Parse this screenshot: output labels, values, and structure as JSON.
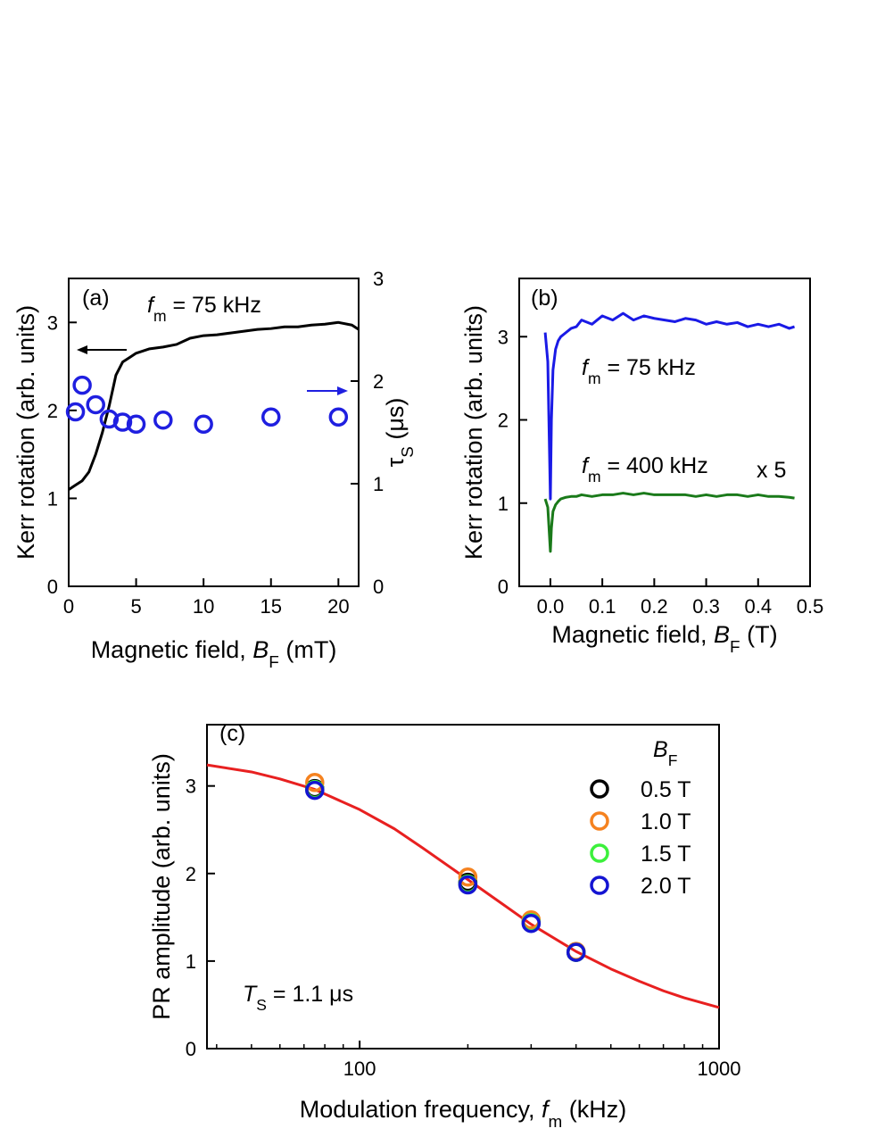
{
  "chart_data": [
    {
      "type": "line",
      "annotations": [
        {
          "parts": [
            {
              "text": "(a)"
            }
          ]
        },
        {
          "parts": [
            {
              "text": "f",
              "style": "italic"
            },
            {
              "text": "m",
              "style": "sub"
            },
            {
              "text": " = 75 kHz"
            }
          ]
        }
      ],
      "xlabel": [
        {
          "text": "Magnetic field, "
        },
        {
          "text": "B",
          "style": "italic"
        },
        {
          "text": "F",
          "style": "sub"
        },
        {
          "text": " (mT)"
        }
      ],
      "ylabel": [
        {
          "text": "Kerr rotation (arb. units)"
        }
      ],
      "y2label": [
        {
          "text": "τ"
        },
        {
          "text": "S",
          "style": "sub"
        },
        {
          "text": " (μs)"
        }
      ],
      "xlim": [
        0,
        21.5
      ],
      "xticks": [
        0,
        5,
        10,
        15,
        20
      ],
      "ylim": [
        0,
        3.5
      ],
      "yticks": [
        0,
        1,
        2,
        3
      ],
      "y2lim": [
        0,
        3
      ],
      "y2ticks": [
        0,
        1,
        2,
        3
      ],
      "series": [
        {
          "type": "line",
          "color": "#000000",
          "x": [
            0,
            0.5,
            1,
            1.5,
            2,
            2.5,
            3,
            3.5,
            4,
            4.5,
            5,
            6,
            7,
            8,
            9,
            10,
            11,
            12,
            13,
            14,
            15,
            16,
            17,
            18,
            19,
            20,
            21,
            21.5
          ],
          "values": [
            1.1,
            1.15,
            1.2,
            1.3,
            1.5,
            1.75,
            2.05,
            2.4,
            2.55,
            2.6,
            2.65,
            2.7,
            2.72,
            2.75,
            2.82,
            2.85,
            2.86,
            2.88,
            2.9,
            2.92,
            2.93,
            2.95,
            2.95,
            2.97,
            2.98,
            3.0,
            2.97,
            2.92
          ]
        },
        {
          "type": "scatter",
          "color": "#1f1fe0",
          "axis": "y2",
          "x": [
            0.5,
            1,
            2,
            3,
            4,
            5,
            7,
            10,
            15,
            20
          ],
          "values": [
            1.7,
            1.96,
            1.77,
            1.63,
            1.6,
            1.58,
            1.62,
            1.58,
            1.65,
            1.65
          ]
        }
      ]
    },
    {
      "type": "line",
      "annotations": [
        {
          "parts": [
            {
              "text": "(b)"
            }
          ]
        },
        {
          "parts": [
            {
              "text": "f",
              "style": "italic"
            },
            {
              "text": "m",
              "style": "sub"
            },
            {
              "text": " = 75 kHz"
            }
          ]
        },
        {
          "parts": [
            {
              "text": "f",
              "style": "italic"
            },
            {
              "text": "m",
              "style": "sub"
            },
            {
              "text": " = 400 kHz"
            }
          ]
        },
        {
          "parts": [
            {
              "text": "x 5"
            }
          ]
        }
      ],
      "xlabel": [
        {
          "text": "Magnetic field, "
        },
        {
          "text": "B",
          "style": "italic"
        },
        {
          "text": "F",
          "style": "sub"
        },
        {
          "text": " (T)"
        }
      ],
      "ylabel": [
        {
          "text": "Kerr rotation (arb. units)"
        }
      ],
      "xlim": [
        -0.06,
        0.5
      ],
      "xticks": [
        {
          "value": 0,
          "label": "0.0"
        },
        0.1,
        0.2,
        0.3,
        0.4,
        0.5
      ],
      "ylim": [
        0,
        3.7
      ],
      "yticks": [
        0,
        1,
        2,
        3
      ],
      "x": [
        -0.01,
        -0.005,
        0,
        0.002,
        0.005,
        0.01,
        0.015,
        0.02,
        0.03,
        0.04,
        0.05,
        0.06,
        0.08,
        0.1,
        0.12,
        0.14,
        0.16,
        0.18,
        0.2,
        0.22,
        0.24,
        0.26,
        0.28,
        0.3,
        0.32,
        0.34,
        0.36,
        0.38,
        0.4,
        0.42,
        0.44,
        0.46,
        0.47
      ],
      "series": [
        {
          "type": "line",
          "color": "#1a1ae6",
          "values": [
            3.05,
            2.7,
            1.05,
            2.0,
            2.6,
            2.85,
            2.95,
            3.0,
            3.05,
            3.1,
            3.12,
            3.2,
            3.15,
            3.25,
            3.2,
            3.28,
            3.2,
            3.25,
            3.22,
            3.2,
            3.18,
            3.22,
            3.2,
            3.15,
            3.18,
            3.15,
            3.17,
            3.12,
            3.15,
            3.12,
            3.15,
            3.1,
            3.12
          ]
        },
        {
          "type": "line",
          "color": "#1a7a1a",
          "values": [
            1.05,
            0.95,
            0.42,
            0.7,
            0.9,
            0.98,
            1.02,
            1.05,
            1.07,
            1.08,
            1.08,
            1.1,
            1.08,
            1.1,
            1.1,
            1.12,
            1.1,
            1.12,
            1.1,
            1.1,
            1.1,
            1.1,
            1.08,
            1.1,
            1.08,
            1.1,
            1.1,
            1.08,
            1.1,
            1.08,
            1.08,
            1.07,
            1.06
          ]
        }
      ]
    },
    {
      "type": "scatter",
      "xscale": "log",
      "annotations": [
        {
          "parts": [
            {
              "text": "(c)"
            }
          ]
        },
        {
          "parts": [
            {
              "text": "T",
              "style": "italic"
            },
            {
              "text": "S",
              "style": "sub"
            },
            {
              "text": " = 1.1 μs"
            }
          ]
        }
      ],
      "xlabel": [
        {
          "text": "Modulation frequency, "
        },
        {
          "text": "f",
          "style": "italic"
        },
        {
          "text": "m",
          "style": "sub"
        },
        {
          "text": " (kHz)"
        }
      ],
      "ylabel": [
        {
          "text": "PR amplitude (arb. units)"
        }
      ],
      "legend_title": [
        {
          "text": "B",
          "style": "italic"
        },
        {
          "text": "F",
          "style": "sub"
        }
      ],
      "legend": "upper right",
      "xlim": [
        37.6,
        1000
      ],
      "xticks": [
        100,
        1000
      ],
      "xminorticks": [
        40,
        50,
        60,
        70,
        80,
        90,
        200,
        300,
        400,
        500,
        600,
        700,
        800,
        900
      ],
      "ylim": [
        0,
        3.7
      ],
      "yticks": [
        0,
        1,
        2,
        3
      ],
      "series": [
        {
          "type": "line",
          "color": "#e82020",
          "x": [
            37.6,
            50,
            60,
            75,
            100,
            125,
            150,
            200,
            250,
            300,
            400,
            500,
            600,
            700,
            800,
            1000
          ],
          "values": [
            3.24,
            3.16,
            3.08,
            2.96,
            2.73,
            2.51,
            2.29,
            1.93,
            1.65,
            1.42,
            1.11,
            0.91,
            0.77,
            0.66,
            0.58,
            0.47
          ]
        },
        {
          "type": "scatter",
          "name": "0.5 T",
          "color": "#000000",
          "x": [
            75,
            200,
            300,
            400
          ],
          "values": [
            2.97,
            1.9,
            1.45,
            1.1
          ]
        },
        {
          "type": "scatter",
          "name": "1.0 T",
          "color": "#f5821f",
          "x": [
            75,
            200,
            300,
            400
          ],
          "values": [
            3.04,
            1.96,
            1.47,
            1.11
          ]
        },
        {
          "type": "scatter",
          "name": "1.5 T",
          "color": "#3cf03c",
          "x": [
            75,
            200,
            300,
            400
          ],
          "values": [
            2.96,
            1.88,
            1.44,
            1.1
          ]
        },
        {
          "type": "scatter",
          "name": "2.0 T",
          "color": "#1414d2",
          "x": [
            75,
            200,
            300,
            400
          ],
          "values": [
            2.95,
            1.87,
            1.43,
            1.1
          ]
        }
      ]
    }
  ]
}
